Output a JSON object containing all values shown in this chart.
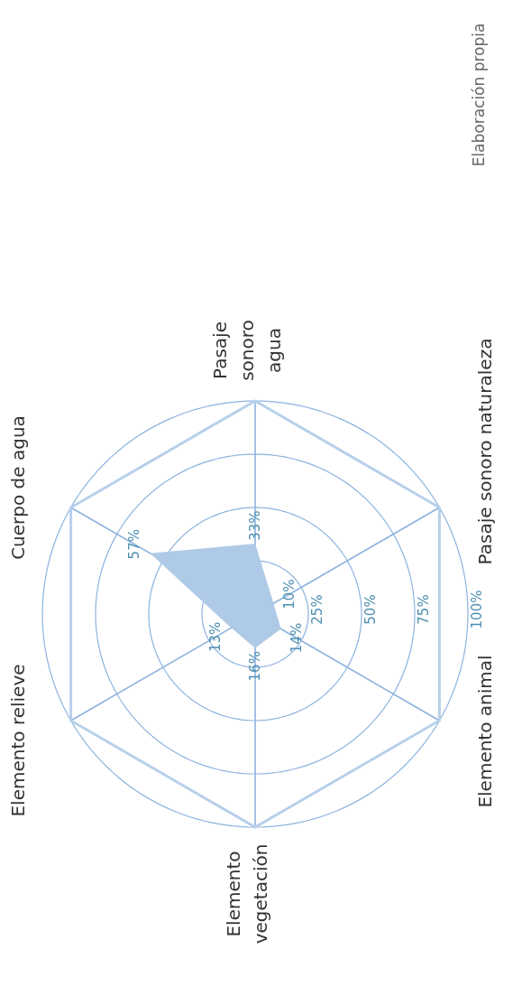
{
  "chart_data": {
    "type": "radar",
    "categories": [
      "Pasaje sonoro agua",
      "Pasaje sonoro naturaleza",
      "Elemento animal",
      "Elemento vegetación",
      "Elemento relieve",
      "Cuerpo de agua"
    ],
    "series": [
      {
        "color": "#aecae6",
        "values": [
          33,
          10,
          14,
          16,
          13,
          57
        ],
        "value_labels": [
          "33%",
          "10%",
          "14%",
          "16%",
          "13%",
          "57%"
        ]
      }
    ],
    "ylim": [
      0,
      100
    ],
    "yticks": [
      {
        "value": 25,
        "label": "25%"
      },
      {
        "value": 50,
        "label": "50%"
      },
      {
        "value": 75,
        "label": "75%"
      },
      {
        "value": 100,
        "label": "100%"
      }
    ],
    "grid": true,
    "annotations": [
      "Elaboración propia"
    ]
  }
}
